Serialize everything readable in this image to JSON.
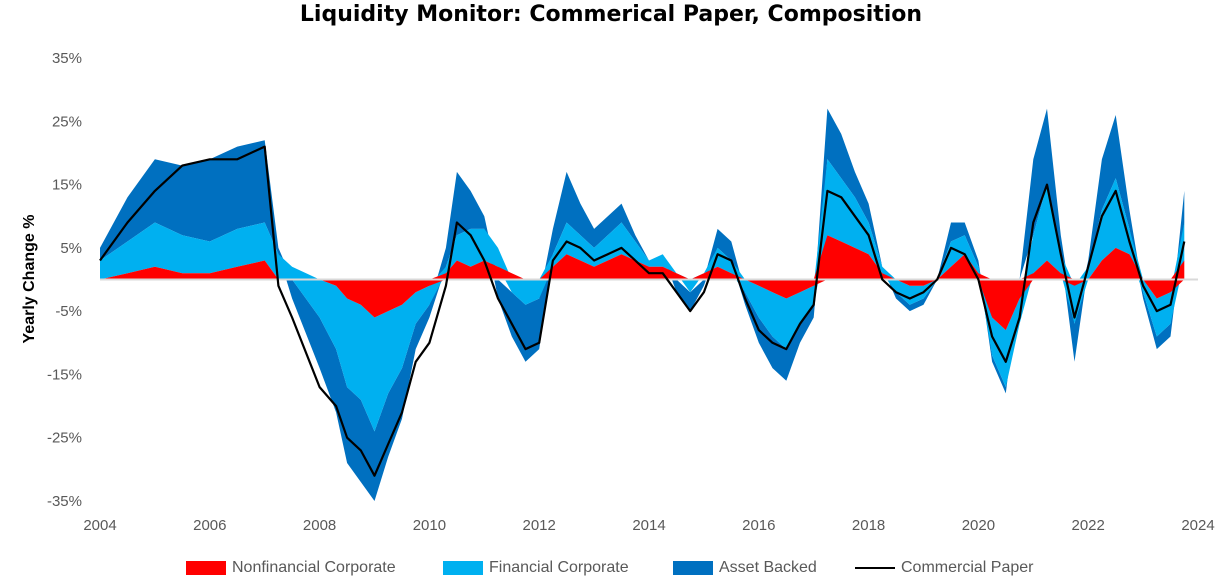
{
  "chart_data": {
    "type": "area",
    "title": "Liquidity Monitor: Commerical Paper, Composition",
    "ylabel": "Yearly Change %",
    "xlabel": "",
    "ylim": [
      -35,
      35
    ],
    "xlim": [
      2004,
      2024
    ],
    "yticks": [
      35,
      25,
      15,
      5,
      -5,
      -15,
      -25,
      -35
    ],
    "ytick_labels": [
      "35%",
      "25%",
      "15%",
      "5%",
      "-5%",
      "-15%",
      "-25%",
      "-35%"
    ],
    "xticks": [
      2004,
      2006,
      2008,
      2010,
      2012,
      2014,
      2016,
      2018,
      2020,
      2022,
      2024
    ],
    "xtick_labels": [
      "2004",
      "2006",
      "2008",
      "2010",
      "2012",
      "2014",
      "2016",
      "2018",
      "2020",
      "2022",
      "2024"
    ],
    "grid": false,
    "legend_position": "bottom",
    "x": [
      2004.0,
      2004.5,
      2005.0,
      2005.5,
      2006.0,
      2006.5,
      2007.0,
      2007.25,
      2007.5,
      2008.0,
      2008.3,
      2008.5,
      2008.75,
      2009.0,
      2009.25,
      2009.5,
      2009.75,
      2010.0,
      2010.3,
      2010.5,
      2010.75,
      2011.0,
      2011.25,
      2011.5,
      2011.75,
      2012.0,
      2012.25,
      2012.5,
      2012.75,
      2013.0,
      2013.25,
      2013.5,
      2013.75,
      2014.0,
      2014.25,
      2014.5,
      2014.75,
      2015.0,
      2015.25,
      2015.5,
      2015.75,
      2016.0,
      2016.25,
      2016.5,
      2016.75,
      2017.0,
      2017.25,
      2017.5,
      2017.75,
      2018.0,
      2018.25,
      2018.5,
      2018.75,
      2019.0,
      2019.25,
      2019.5,
      2019.75,
      2020.0,
      2020.25,
      2020.5,
      2020.75,
      2021.0,
      2021.25,
      2021.5,
      2021.75,
      2022.0,
      2022.25,
      2022.5,
      2022.75,
      2023.0,
      2023.25,
      2023.5,
      2023.75
    ],
    "series": [
      {
        "name": "Nonfinancial Corporate",
        "color": "#ff0000",
        "values": [
          0,
          1,
          2,
          1,
          1,
          2,
          3,
          0,
          0,
          0,
          -1,
          -3,
          -4,
          -6,
          -5,
          -4,
          -2,
          -1,
          1,
          3,
          2,
          3,
          2,
          1,
          0,
          0,
          2,
          4,
          3,
          2,
          3,
          4,
          3,
          2,
          2,
          1,
          0,
          1,
          2,
          1,
          0,
          -1,
          -2,
          -3,
          -2,
          -1,
          7,
          6,
          5,
          4,
          1,
          0,
          -1,
          -1,
          0,
          2,
          4,
          1,
          -6,
          -8,
          -3,
          1,
          3,
          1,
          -1,
          0,
          3,
          5,
          4,
          0,
          -3,
          -2,
          3
        ]
      },
      {
        "name": "Financial Corporate",
        "color": "#00b0f0",
        "values": [
          3,
          5,
          7,
          6,
          5,
          6,
          6,
          4,
          2,
          -6,
          -10,
          -14,
          -15,
          -18,
          -13,
          -10,
          -5,
          -3,
          1,
          4,
          6,
          5,
          3,
          -2,
          -4,
          -3,
          2,
          5,
          4,
          3,
          4,
          5,
          3,
          1,
          2,
          0,
          -2,
          0,
          3,
          2,
          -2,
          -5,
          -7,
          -8,
          -5,
          -3,
          12,
          10,
          8,
          5,
          1,
          -2,
          -3,
          -2,
          0,
          4,
          3,
          1,
          -6,
          -9,
          -4,
          6,
          12,
          3,
          -6,
          2,
          8,
          11,
          4,
          -2,
          -6,
          -5,
          6
        ]
      },
      {
        "name": "Asset Backed",
        "color": "#0070c0",
        "values": [
          2,
          7,
          10,
          11,
          13,
          13,
          13,
          1,
          -3,
          -8,
          -10,
          -12,
          -13,
          -12,
          -10,
          -8,
          -4,
          -2,
          3,
          10,
          6,
          2,
          -3,
          -7,
          -9,
          -8,
          4,
          8,
          5,
          3,
          3,
          3,
          1,
          0,
          0,
          -2,
          -3,
          -1,
          3,
          3,
          -2,
          -4,
          -5,
          -5,
          -3,
          -2,
          8,
          7,
          4,
          3,
          0,
          -1,
          -1,
          -1,
          0,
          3,
          2,
          1,
          -1,
          -1,
          0,
          12,
          12,
          3,
          -6,
          1,
          8,
          10,
          3,
          -1,
          -2,
          -2,
          5
        ]
      },
      {
        "name": "Commercial Paper",
        "color": "#000000",
        "values": [
          3,
          9,
          14,
          18,
          19,
          19,
          21,
          -1,
          -6,
          -17,
          -20,
          -25,
          -27,
          -31,
          -26,
          -21,
          -13,
          -10,
          -1,
          9,
          7,
          3,
          -3,
          -7,
          -11,
          -10,
          3,
          6,
          5,
          3,
          4,
          5,
          3,
          1,
          1,
          -2,
          -5,
          -2,
          4,
          3,
          -3,
          -8,
          -10,
          -11,
          -7,
          -4,
          14,
          13,
          10,
          7,
          0,
          -2,
          -3,
          -2,
          0,
          5,
          4,
          0,
          -9,
          -13,
          -6,
          9,
          15,
          4,
          -6,
          2,
          10,
          14,
          6,
          -1,
          -5,
          -4,
          6
        ]
      }
    ]
  }
}
